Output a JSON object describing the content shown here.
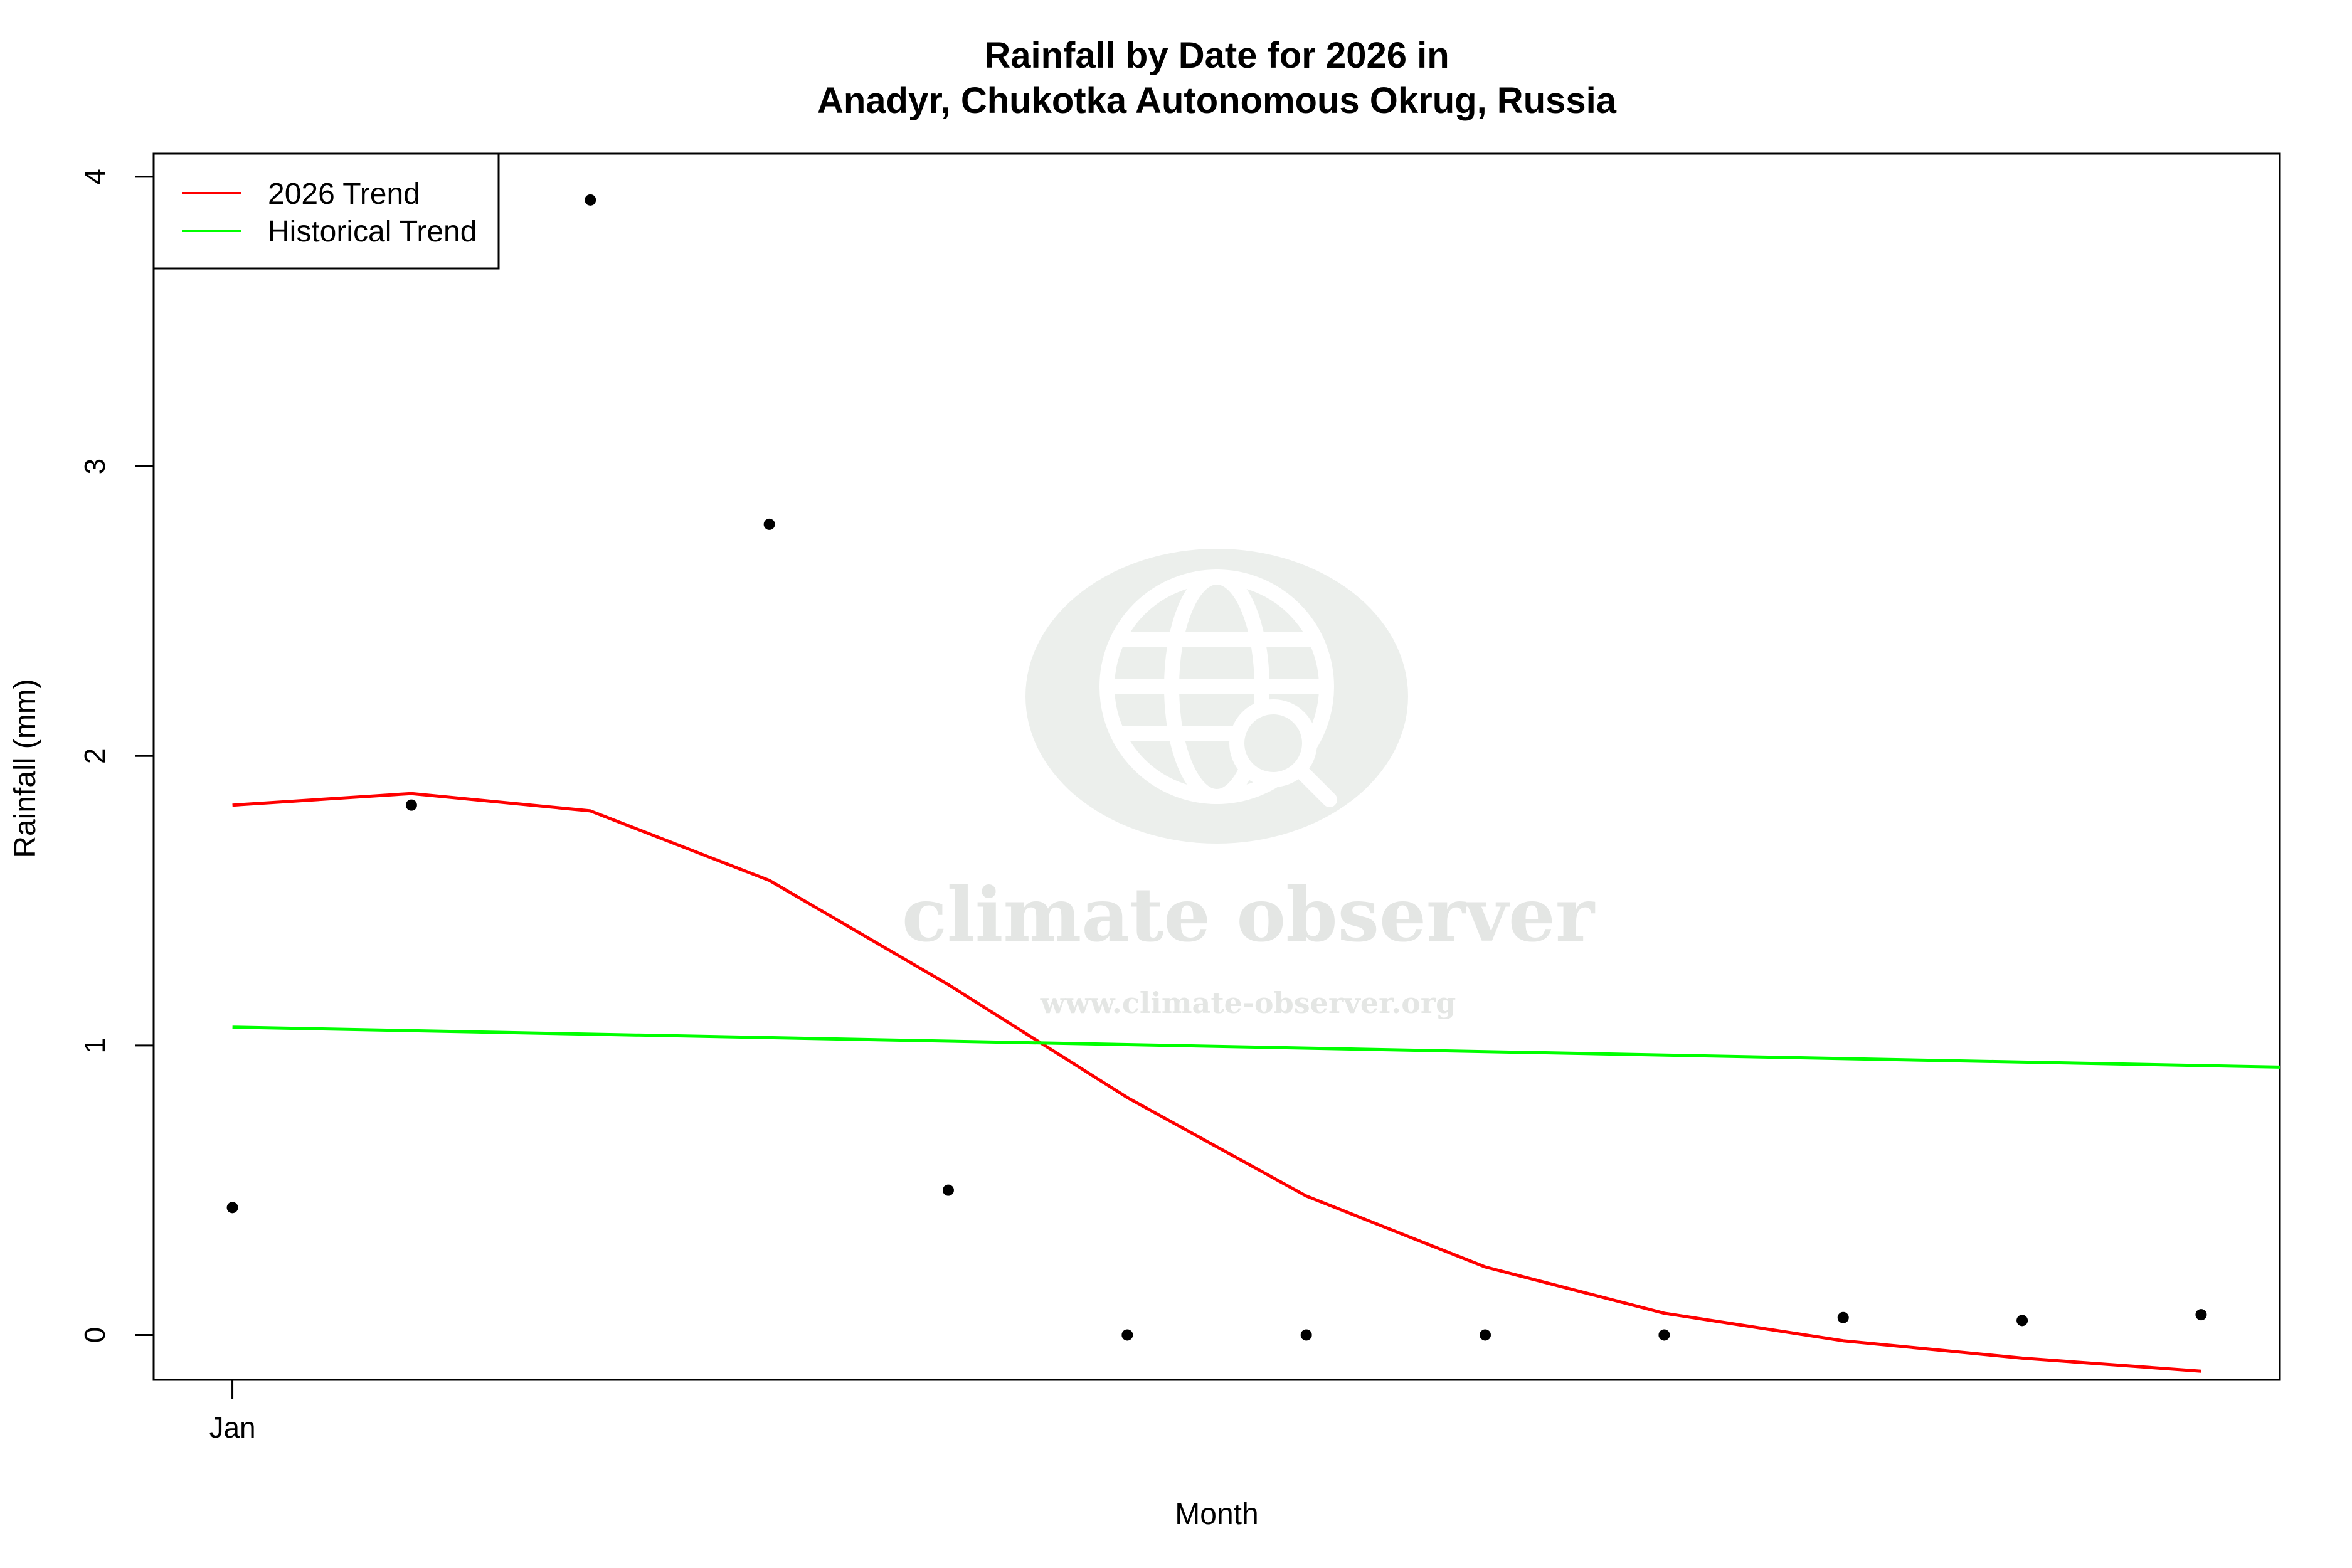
{
  "chart_data": {
    "type": "scatter",
    "title": "Rainfall by Date for 2026 in",
    "subtitle": "Anadyr, Chukotka Autonomous Okrug, Russia",
    "xlabel": "Month",
    "ylabel": "Rainfall (mm)",
    "x_ticks": [
      {
        "x": 1,
        "label": "Jan"
      }
    ],
    "y_ticks": [
      0,
      1,
      2,
      3,
      4
    ],
    "xlim": [
      0.56,
      12.44
    ],
    "ylim": [
      -0.155,
      4.08
    ],
    "points": [
      {
        "x": 1,
        "y": 0.44
      },
      {
        "x": 2,
        "y": 1.83
      },
      {
        "x": 3,
        "y": 3.92
      },
      {
        "x": 4,
        "y": 2.8
      },
      {
        "x": 5,
        "y": 0.5
      },
      {
        "x": 6,
        "y": 0.0
      },
      {
        "x": 7,
        "y": 0.0
      },
      {
        "x": 8,
        "y": 0.0
      },
      {
        "x": 9,
        "y": 0.0
      },
      {
        "x": 10,
        "y": 0.06
      },
      {
        "x": 11,
        "y": 0.05
      },
      {
        "x": 12,
        "y": 0.07
      }
    ],
    "series": [
      {
        "name": "2026 Trend",
        "color": "#ff0000",
        "x": [
          1,
          2,
          3,
          4,
          5,
          6,
          7,
          8,
          9,
          10,
          11,
          12
        ],
        "y": [
          1.83,
          1.87,
          1.81,
          1.57,
          1.21,
          0.82,
          0.48,
          0.235,
          0.075,
          -0.02,
          -0.08,
          -0.125
        ]
      },
      {
        "name": "Historical Trend",
        "color": "#00ff00",
        "x": [
          1,
          12.44
        ],
        "y": [
          1.063,
          0.925
        ]
      }
    ],
    "legend": {
      "position": "top-left"
    },
    "grid": false
  },
  "watermark": {
    "brand": "climate observer",
    "url": "www.climate-observer.org",
    "icon": "globe-search-icon"
  }
}
